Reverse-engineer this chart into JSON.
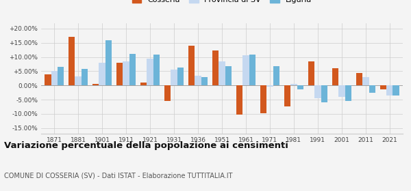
{
  "years": [
    1871,
    1881,
    1901,
    1911,
    1921,
    1931,
    1936,
    1951,
    1961,
    1971,
    1981,
    1991,
    2001,
    2011,
    2021
  ],
  "cosseria": [
    3.8,
    17.2,
    0.5,
    8.0,
    1.0,
    -5.5,
    14.0,
    12.2,
    -10.2,
    -9.8,
    -7.5,
    8.5,
    6.0,
    4.3,
    -1.5
  ],
  "provincia_sv": [
    5.2,
    3.2,
    8.0,
    8.5,
    9.5,
    5.5,
    3.5,
    8.5,
    10.7,
    -0.5,
    0.5,
    -4.5,
    -4.0,
    3.0,
    -3.5
  ],
  "liguria": [
    6.5,
    5.8,
    15.8,
    11.0,
    10.8,
    6.2,
    3.0,
    6.8,
    10.8,
    6.7,
    -1.5,
    -6.0,
    -5.5,
    -2.5,
    -3.5
  ],
  "color_cosseria": "#d2581e",
  "color_provincia": "#c5d8f0",
  "color_liguria": "#6cb4d8",
  "bg_color": "#f4f4f4",
  "grid_color": "#cccccc",
  "title": "Variazione percentuale della popolazione ai censimenti",
  "subtitle": "COMUNE DI COSSERIA (SV) - Dati ISTAT - Elaborazione TUTTITALIA.IT",
  "ylim": [
    -17,
    22
  ],
  "yticks": [
    -15,
    -10,
    -5,
    0,
    5,
    10,
    15,
    20
  ],
  "ytick_labels": [
    "-15.00%",
    "-10.00%",
    "-5.00%",
    "0.00%",
    "+5.00%",
    "+10.00%",
    "+15.00%",
    "+20.00%"
  ],
  "bar_width": 0.27,
  "title_fontsize": 9.5,
  "subtitle_fontsize": 7.0
}
